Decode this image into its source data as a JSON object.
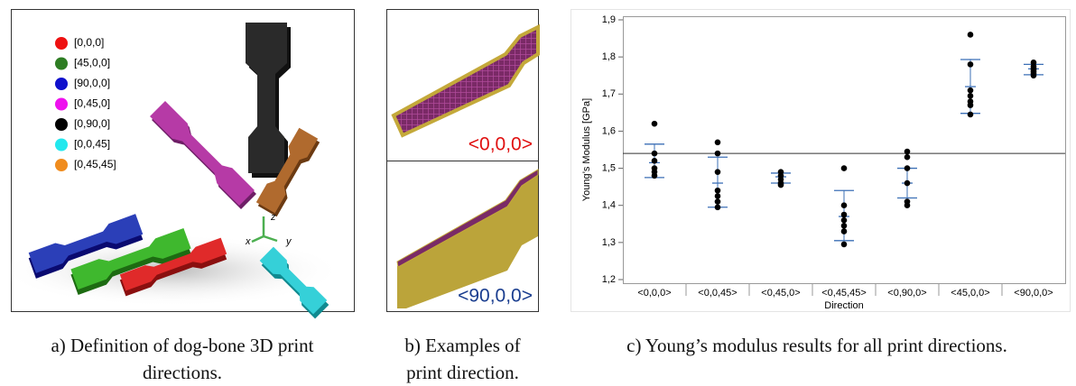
{
  "panel_a": {
    "legend": [
      {
        "label": "[0,0,0]",
        "color": "#ee1111"
      },
      {
        "label": "[45,0,0]",
        "color": "#2e7d23"
      },
      {
        "label": "[90,0,0]",
        "color": "#1010cc"
      },
      {
        "label": "[0,45,0]",
        "color": "#ee11ee"
      },
      {
        "label": "[0,90,0]",
        "color": "#000000"
      },
      {
        "label": "[0,0,45]",
        "color": "#22e8ee"
      },
      {
        "label": "[0,45,45]",
        "color": "#f08c1e"
      }
    ],
    "axes": {
      "x": "x",
      "y": "y",
      "z": "z"
    },
    "caption": "a) Definition of dog-bone 3D print directions."
  },
  "panel_b": {
    "top_label": "<0,0,0>",
    "bottom_label": "<90,0,0>",
    "caption": "b) Examples of print direction."
  },
  "panel_c": {
    "caption": "c) Young’s modulus results for all print directions."
  },
  "chart_data": {
    "type": "dot",
    "xlabel": "Direction",
    "ylabel": "Young’s Modulus [GPa]",
    "categories": [
      "<0,0,0>",
      "<0,0,45>",
      "<0,45,0>",
      "<0,45,45>",
      "<0,90,0>",
      "<45,0,0>",
      "<90,0,0>"
    ],
    "values": [
      [
        1.62,
        1.54,
        1.52,
        1.5,
        1.49,
        1.48
      ],
      [
        1.57,
        1.54,
        1.49,
        1.44,
        1.425,
        1.41,
        1.395
      ],
      [
        1.49,
        1.48,
        1.47,
        1.46,
        1.455
      ],
      [
        1.5,
        1.4,
        1.375,
        1.36,
        1.345,
        1.33,
        1.295
      ],
      [
        1.545,
        1.53,
        1.5,
        1.46,
        1.41,
        1.4
      ],
      [
        1.86,
        1.78,
        1.71,
        1.695,
        1.68,
        1.67,
        1.645
      ],
      [
        1.785,
        1.775,
        1.77,
        1.765,
        1.76,
        1.755,
        1.75
      ]
    ],
    "means": [
      1.515,
      1.46,
      1.477,
      1.37,
      1.46,
      1.72,
      1.768
    ],
    "upper": [
      1.565,
      1.53,
      1.487,
      1.44,
      1.5,
      1.793,
      1.78
    ],
    "lower": [
      1.475,
      1.395,
      1.46,
      1.305,
      1.42,
      1.648,
      1.752
    ],
    "reference_line": 1.54,
    "point_color": "#000000",
    "stat_color": "#3b6fb6",
    "ylim": [
      1.2,
      1.9
    ],
    "yticks": [
      {
        "value": 1.2,
        "label": "1,2"
      },
      {
        "value": 1.3,
        "label": "1,3"
      },
      {
        "value": 1.4,
        "label": "1,4"
      },
      {
        "value": 1.5,
        "label": "1,5"
      },
      {
        "value": 1.6,
        "label": "1,6"
      },
      {
        "value": 1.7,
        "label": "1,7"
      },
      {
        "value": 1.8,
        "label": "1,8"
      },
      {
        "value": 1.9,
        "label": "1,9"
      }
    ]
  }
}
